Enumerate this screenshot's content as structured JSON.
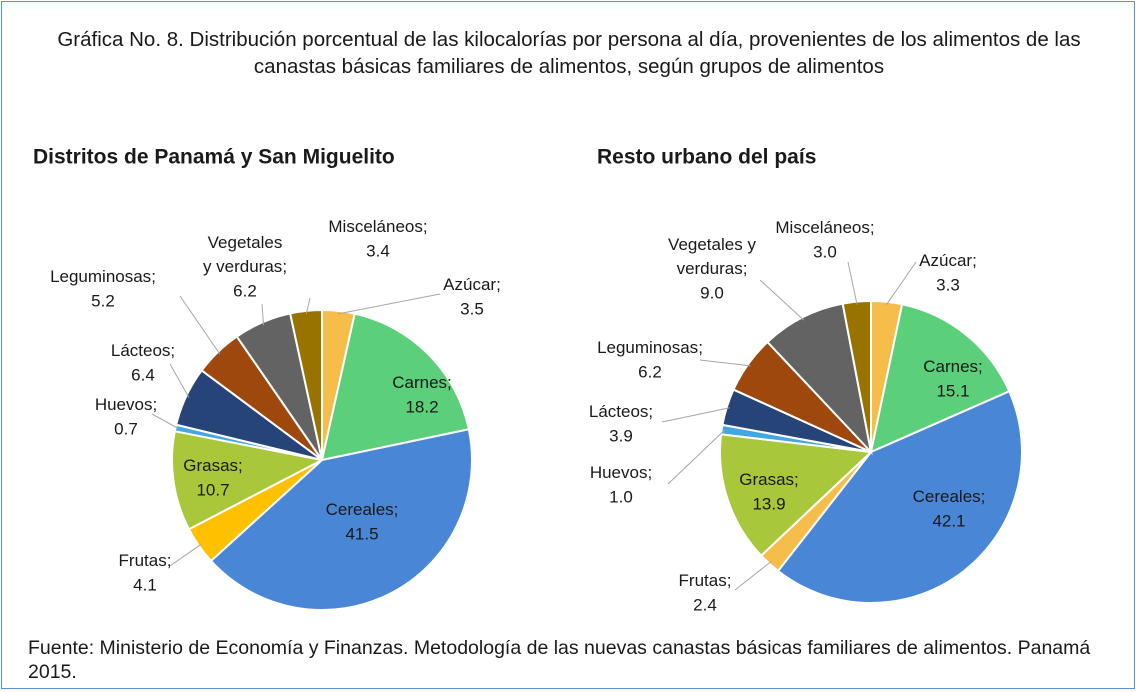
{
  "title": "Gráfica No.  8. Distribución porcentual de las kilocalorías por persona al día, provenientes de los alimentos de las canastas básicas familiares de alimentos, según grupos de alimentos",
  "source": "Fuente: Ministerio de Economía y Finanzas. Metodología de las nuevas canastas básicas familiares de alimentos. Panamá 2015.",
  "label_separator": ";",
  "chart_data": [
    {
      "type": "pie",
      "title": "Distritos de Panamá y San Miguelito",
      "categories": [
        "Azúcar",
        "Carnes",
        "Cereales",
        "Frutas",
        "Grasas",
        "Huevos",
        "Lácteos",
        "Leguminosas",
        "Vegetales y verduras",
        "Misceláneos"
      ],
      "values": [
        3.5,
        18.2,
        41.5,
        4.1,
        10.7,
        0.7,
        6.4,
        5.2,
        6.2,
        3.4
      ],
      "value_labels": [
        "3.5",
        "18.2",
        "41.5",
        "4.1",
        "10.7",
        "0.7",
        "6.4",
        "5.2",
        "6.2",
        "3.4"
      ],
      "colors": [
        "#f6bd4a",
        "#5ccf7a",
        "#4a86d6",
        "#ffc000",
        "#a9c73b",
        "#42a6e0",
        "#264478",
        "#9e480e",
        "#636363",
        "#997300"
      ]
    },
    {
      "type": "pie",
      "title": "Resto urbano del país",
      "categories": [
        "Azúcar",
        "Carnes",
        "Cereales",
        "Frutas",
        "Grasas",
        "Huevos",
        "Lácteos",
        "Leguminosas",
        "Vegetales y verduras",
        "Misceláneos"
      ],
      "values": [
        3.3,
        15.1,
        42.1,
        2.4,
        13.9,
        1.0,
        3.9,
        6.2,
        9.0,
        3.0
      ],
      "value_labels": [
        "3.3",
        "15.1",
        "42.1",
        "2.4",
        "13.9",
        "1.0",
        "3.9",
        "6.2",
        "9.0",
        "3.0"
      ],
      "colors": [
        "#f6bd4a",
        "#5ccf7a",
        "#4a86d6",
        "#f6bd4a",
        "#a9c73b",
        "#42a6e0",
        "#264478",
        "#9e480e",
        "#636363",
        "#997300"
      ]
    }
  ]
}
